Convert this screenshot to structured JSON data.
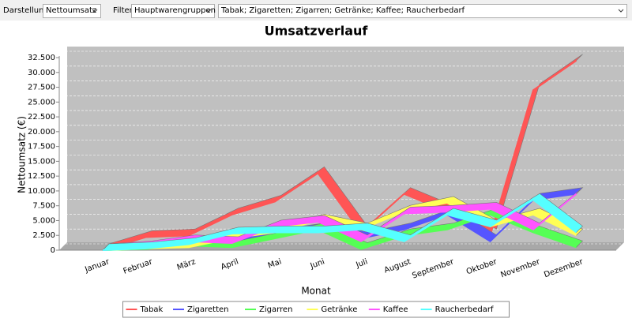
{
  "toolbar": {
    "darstellung": {
      "label": "Darstellung",
      "value": "Nettoumsatz"
    },
    "filter": {
      "label": "Filter",
      "value": "Hauptwarengruppen"
    },
    "selection": "Tabak; Zigaretten; Zigarren; Getränke; Kaffee; Raucherbedarf"
  },
  "chart_data": {
    "type": "line",
    "title": "Umsatzverlauf",
    "x_label": "Monat",
    "y_label": "Nettoumsatz (€)",
    "categories": [
      "Januar",
      "Februar",
      "März",
      "April",
      "Mai",
      "Juni",
      "Juli",
      "August",
      "September",
      "Oktober",
      "November",
      "Dezember"
    ],
    "ylim": [
      0,
      32500
    ],
    "yticks": [
      0,
      {
        "value": 2500,
        "label": "2.500"
      },
      {
        "value": 5000,
        "label": "5.000"
      },
      {
        "value": 7500,
        "label": "7.500"
      },
      {
        "value": 10000,
        "label": "10.000"
      },
      {
        "value": 12500,
        "label": "12.500"
      },
      {
        "value": 15000,
        "label": "15.000"
      },
      {
        "value": 17500,
        "label": "17.500"
      },
      {
        "value": 20000,
        "label": "20.000"
      },
      {
        "value": 22500,
        "label": "22.500"
      },
      {
        "value": 25000,
        "label": "25.000"
      },
      {
        "value": 27500,
        "label": "27.500"
      },
      {
        "value": 30000,
        "label": "30.000"
      },
      {
        "value": 32500,
        "label": "32.500"
      }
    ],
    "grid": true,
    "legend": "bottom",
    "series": [
      {
        "name": "Tabak",
        "color": "#ff5555",
        "values": [
          0,
          2200,
          2500,
          6000,
          8200,
          13000,
          3000,
          9500,
          6500,
          2500,
          27000,
          32000
        ]
      },
      {
        "name": "Zigaretten",
        "color": "#5555ff",
        "values": [
          0,
          300,
          1200,
          1500,
          2500,
          3500,
          2000,
          3500,
          6000,
          1500,
          8500,
          9500
        ]
      },
      {
        "name": "Zigarren",
        "color": "#55ff55",
        "values": [
          0,
          200,
          800,
          500,
          2000,
          3500,
          200,
          2500,
          3500,
          6000,
          3000,
          500
        ]
      },
      {
        "name": "Getränke",
        "color": "#ffff55",
        "values": [
          0,
          300,
          500,
          2000,
          3000,
          5000,
          3500,
          6500,
          8000,
          4000,
          6000,
          2500
        ]
      },
      {
        "name": "Kaffee",
        "color": "#ff55ff",
        "values": [
          0,
          500,
          1500,
          1200,
          4000,
          4800,
          1500,
          6200,
          6500,
          7000,
          3500,
          9500
        ]
      },
      {
        "name": "Raucherbedarf",
        "color": "#55ffff",
        "values": [
          0,
          300,
          1000,
          2800,
          3000,
          3000,
          3500,
          1500,
          6000,
          4000,
          8500,
          3000
        ]
      }
    ]
  }
}
